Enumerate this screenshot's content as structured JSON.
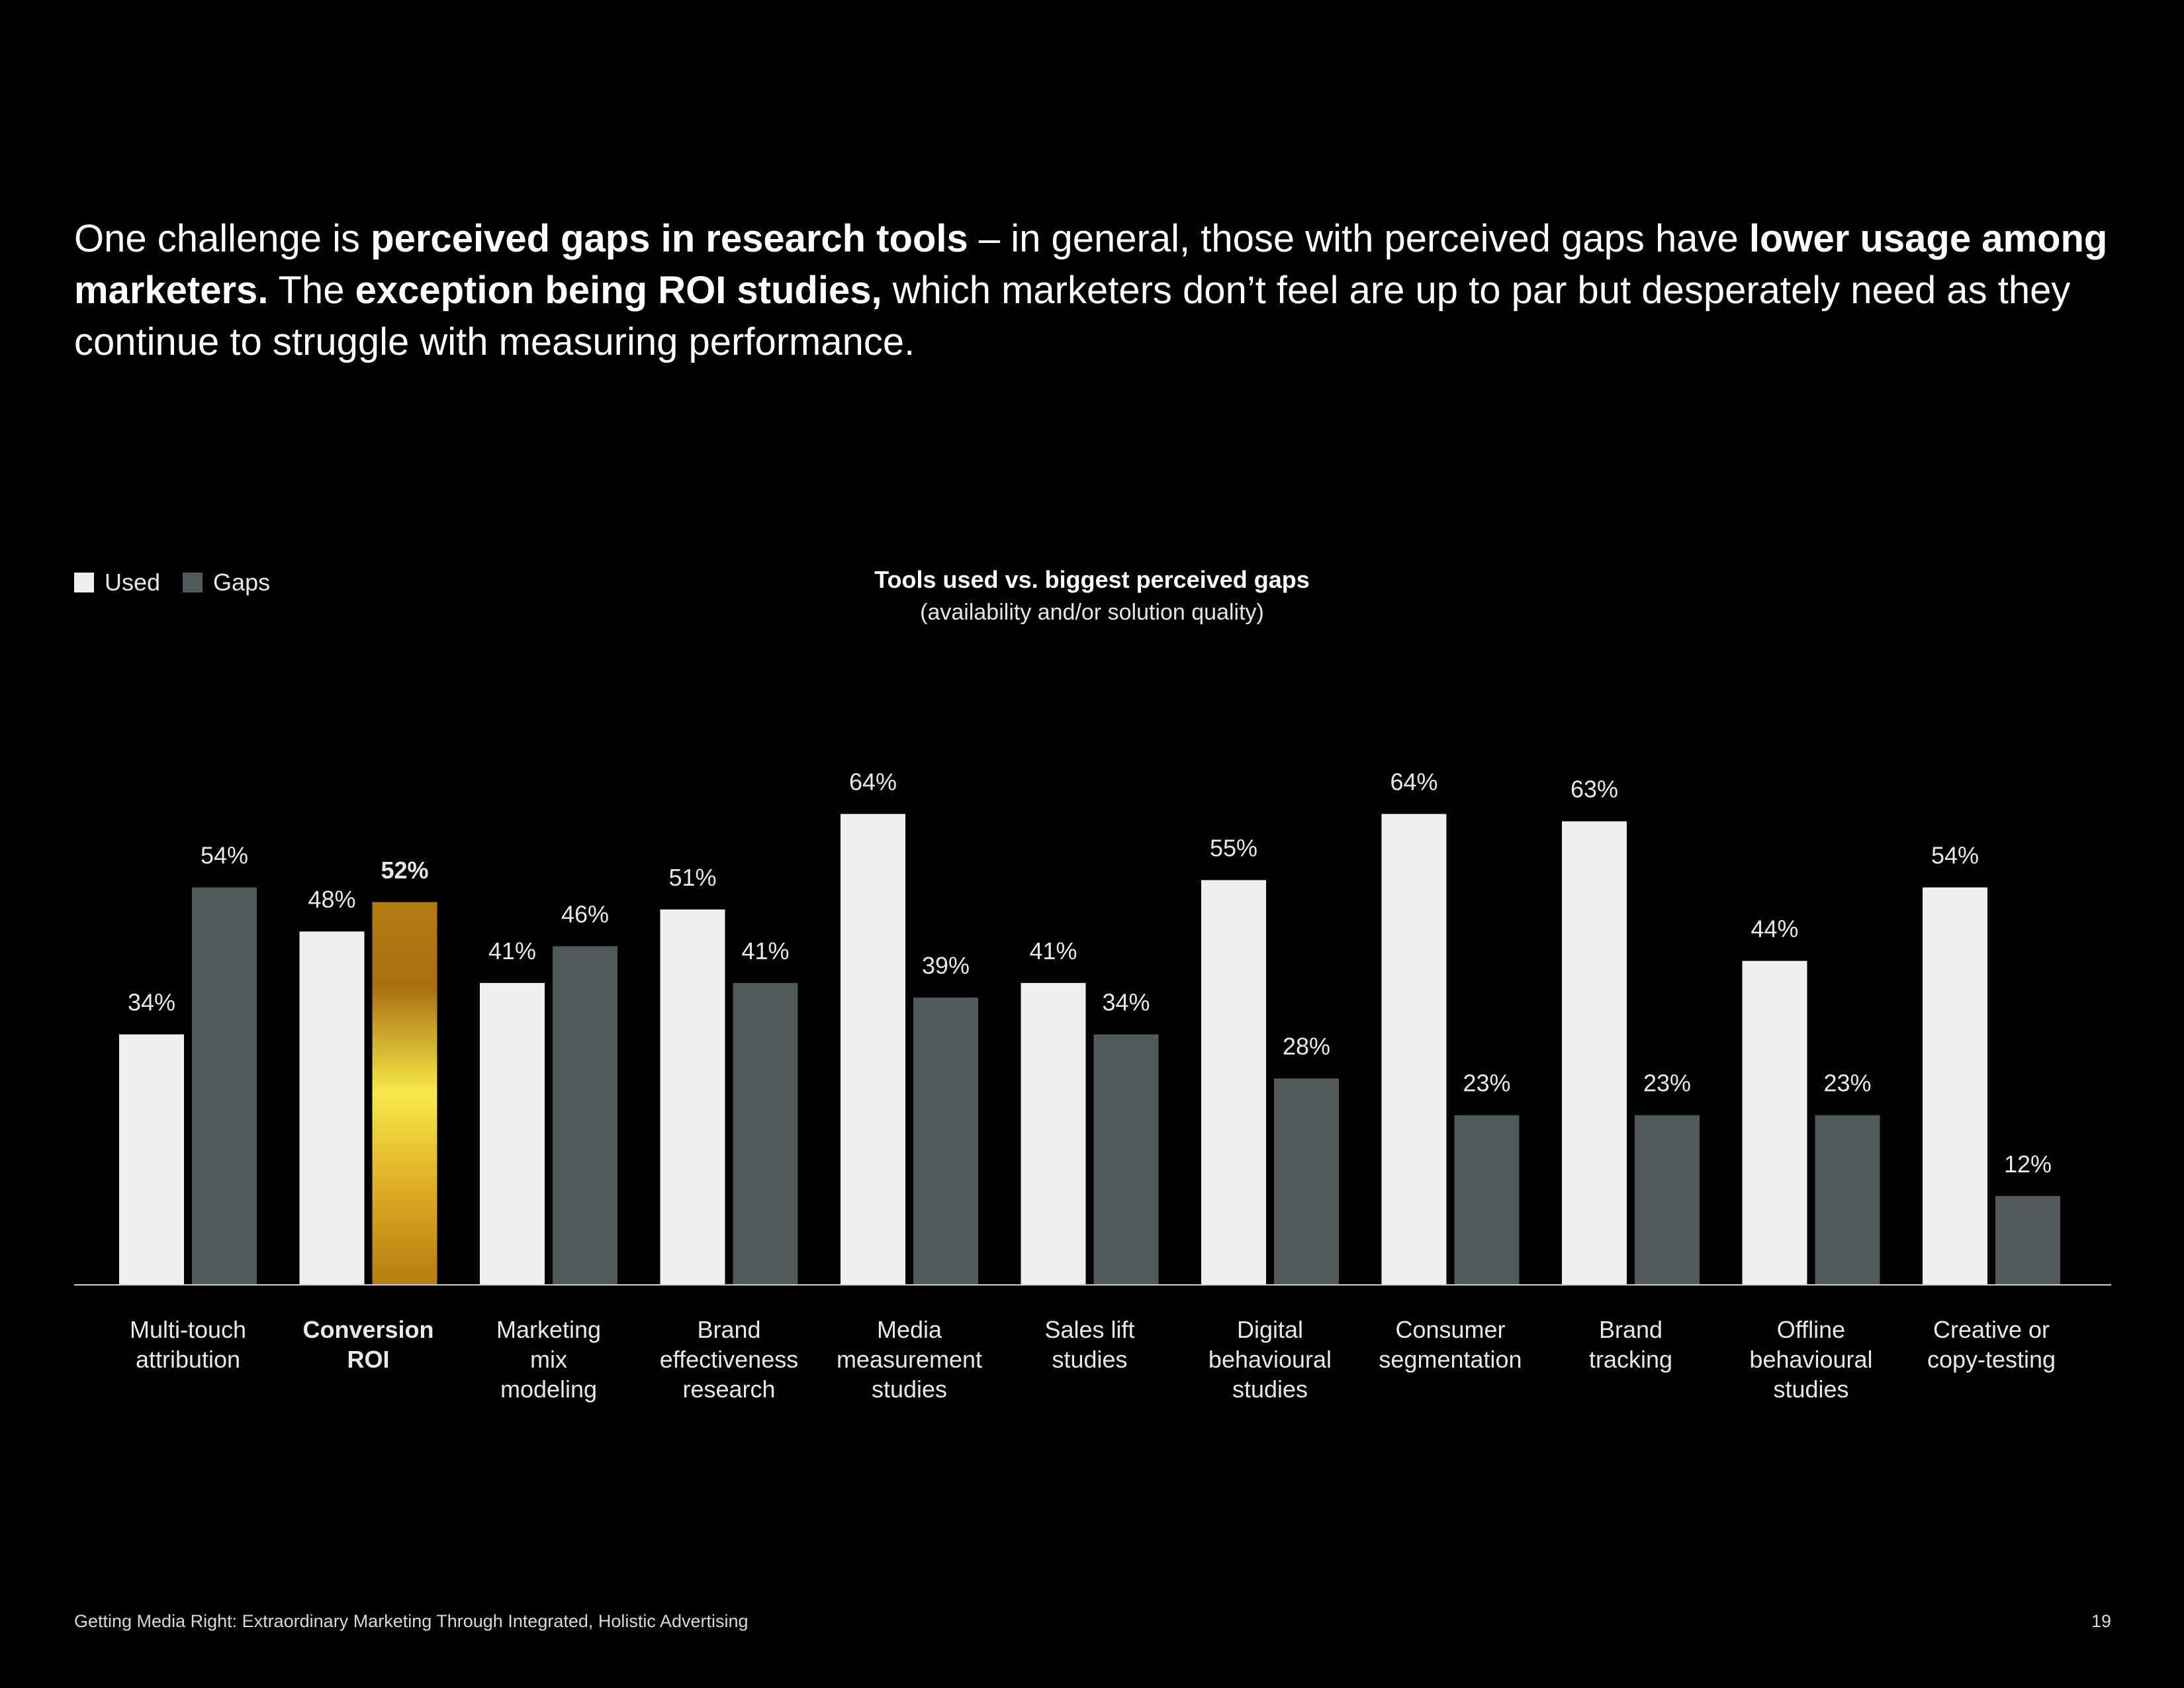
{
  "headline": {
    "parts": [
      {
        "text": "One challenge is ",
        "bold": false
      },
      {
        "text": "perceived gaps in research tools",
        "bold": true
      },
      {
        "text": " – in general, those with perceived gaps have ",
        "bold": false
      },
      {
        "text": "lower usage among marketers.",
        "bold": true
      },
      {
        "text": " The ",
        "bold": false
      },
      {
        "text": "exception being ROI studies,",
        "bold": true
      },
      {
        "text": " which marketers don’t feel are up to par but desperately need as they continue to struggle with measuring performance.",
        "bold": false
      }
    ]
  },
  "legend": {
    "used_label": "Used",
    "gaps_label": "Gaps"
  },
  "colors": {
    "used": "#eef0ee",
    "gaps": "#505a5b",
    "highlight_top": "#f7e94a",
    "highlight_mid": "#b47d12",
    "axis": "#cfcfcf",
    "label": "#e8e8e8"
  },
  "chart_data": {
    "type": "bar",
    "title": "Tools used vs. biggest perceived gaps",
    "subtitle": "(availability and/or solution quality)",
    "ylim": [
      0,
      100
    ],
    "categories": [
      [
        "Multi-touch",
        "attribution"
      ],
      [
        "Conversion",
        "ROI"
      ],
      [
        "Marketing",
        "mix",
        "modeling"
      ],
      [
        "Brand",
        "effectiveness",
        "research"
      ],
      [
        "Media",
        "measurement",
        "studies"
      ],
      [
        "Sales lift",
        "studies"
      ],
      [
        "Digital",
        "behavioural",
        "studies"
      ],
      [
        "Consumer",
        "segmentation"
      ],
      [
        "Brand",
        "tracking"
      ],
      [
        "Offline",
        "behavioural",
        "studies"
      ],
      [
        "Creative or",
        "copy-testing"
      ]
    ],
    "highlight_index": 1,
    "series": [
      {
        "name": "Used",
        "values": [
          34,
          48,
          41,
          51,
          64,
          41,
          55,
          64,
          63,
          44,
          54
        ],
        "labels": [
          "34%",
          "48%",
          "41%",
          "51%",
          "64%",
          "41%",
          "55%",
          "64%",
          "63%",
          "44%",
          "54%"
        ]
      },
      {
        "name": "Gaps",
        "values": [
          54,
          52,
          46,
          41,
          39,
          34,
          28,
          23,
          23,
          23,
          12
        ],
        "labels": [
          "54%",
          "52%",
          "46%",
          "41%",
          "39%",
          "34%",
          "28%",
          "23%",
          "23%",
          "23%",
          "12%"
        ]
      }
    ]
  },
  "footer": {
    "text": "Getting Media Right: Extraordinary Marketing Through Integrated, Holistic Advertising",
    "page": "19"
  }
}
